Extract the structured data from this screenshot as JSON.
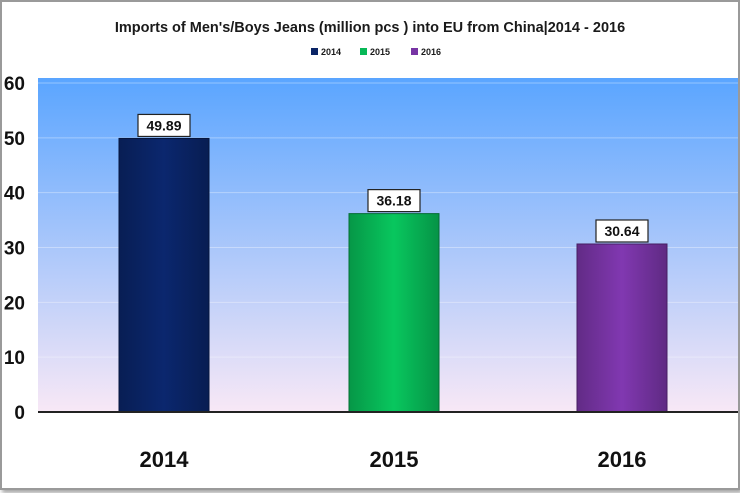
{
  "chart_data": {
    "type": "bar",
    "title": "Imports of Men's/Boys Jeans (million pcs ) into EU from China|2014 - 2016",
    "categories": [
      "2014",
      "2015",
      "2016"
    ],
    "values": [
      49.89,
      36.18,
      30.64
    ],
    "value_labels": [
      "49.89",
      "36.18",
      "30.64"
    ],
    "legend": [
      "2014",
      "2015",
      "2016"
    ],
    "legend_position": "top",
    "ylim": [
      0,
      60
    ],
    "yticks": [
      "0",
      "10",
      "20",
      "30",
      "40",
      "50",
      "60"
    ],
    "colors": [
      "#0a2466",
      "#07b857",
      "#7734a4"
    ],
    "grid": true,
    "background_gradient": [
      "#5aa5ff",
      "#f8e8f6"
    ]
  }
}
